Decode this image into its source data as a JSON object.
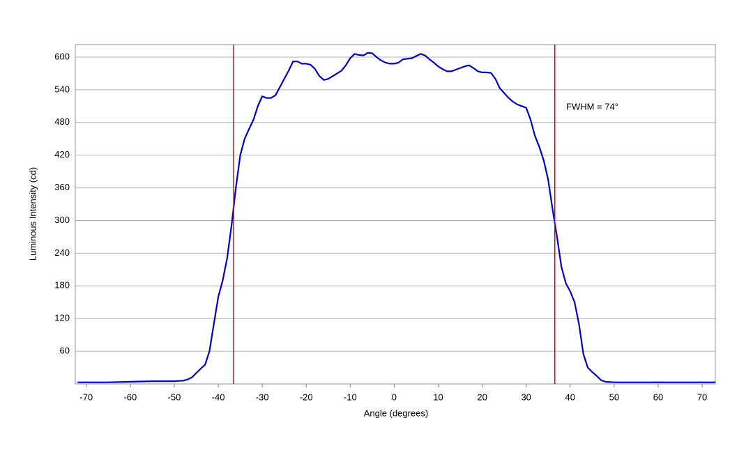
{
  "chart_data": {
    "type": "line",
    "x_label": "Angle (degrees)",
    "y_label": "Luminous Intensity (cd)",
    "annotation": "FWHM = 74°",
    "markers": [
      -36.5,
      36.5
    ],
    "marker_color": "#e00000",
    "grid": true,
    "xlim": [
      -72.5,
      73
    ],
    "ylim": [
      0,
      623
    ],
    "xticks": [
      -70,
      -60,
      -50,
      -40,
      -30,
      -20,
      -10,
      0,
      10,
      20,
      30,
      40,
      50,
      60,
      70
    ],
    "yticks": [
      60,
      120,
      180,
      240,
      300,
      360,
      420,
      480,
      540,
      600
    ],
    "series": [
      {
        "color": "#0000cc",
        "x": [
          -72,
          -70,
          -65,
          -60,
          -55,
          -50,
          -48,
          -47,
          -46,
          -45,
          -44,
          -43,
          -42,
          -41,
          -40,
          -39,
          -38,
          -37,
          -36,
          -35,
          -34,
          -33,
          -32,
          -31,
          -30,
          -29,
          -28,
          -27,
          -26,
          -25,
          -24,
          -23,
          -22,
          -21,
          -20,
          -19,
          -18,
          -17,
          -16,
          -15,
          -14,
          -13,
          -12,
          -11,
          -10,
          -9,
          -8,
          -7,
          -6,
          -5,
          -4,
          -3,
          -2,
          -1,
          0,
          1,
          2,
          3,
          4,
          5,
          6,
          7,
          8,
          9,
          10,
          11,
          12,
          13,
          14,
          15,
          16,
          17,
          18,
          19,
          20,
          21,
          22,
          23,
          24,
          25,
          26,
          27,
          28,
          29,
          30,
          31,
          32,
          33,
          34,
          35,
          36,
          37,
          38,
          39,
          40,
          41,
          42,
          43,
          44,
          45,
          46,
          47,
          48,
          50,
          55,
          60,
          65,
          70,
          73
        ],
        "values": [
          3,
          3,
          3,
          4,
          5,
          5,
          6,
          8,
          12,
          20,
          28,
          35,
          60,
          110,
          160,
          190,
          230,
          290,
          360,
          420,
          450,
          468,
          485,
          510,
          528,
          525,
          525,
          530,
          545,
          560,
          575,
          592,
          592,
          588,
          588,
          586,
          578,
          565,
          558,
          560,
          565,
          570,
          575,
          585,
          598,
          606,
          604,
          603,
          608,
          607,
          600,
          594,
          590,
          588,
          588,
          590,
          596,
          597,
          598,
          602,
          606,
          603,
          596,
          590,
          583,
          578,
          574,
          574,
          577,
          580,
          583,
          585,
          580,
          574,
          572,
          572,
          571,
          560,
          543,
          534,
          525,
          518,
          513,
          510,
          507,
          485,
          455,
          435,
          410,
          375,
          320,
          270,
          215,
          185,
          170,
          150,
          110,
          55,
          30,
          22,
          15,
          7,
          4,
          3,
          3,
          3,
          3,
          3,
          3
        ]
      }
    ]
  }
}
